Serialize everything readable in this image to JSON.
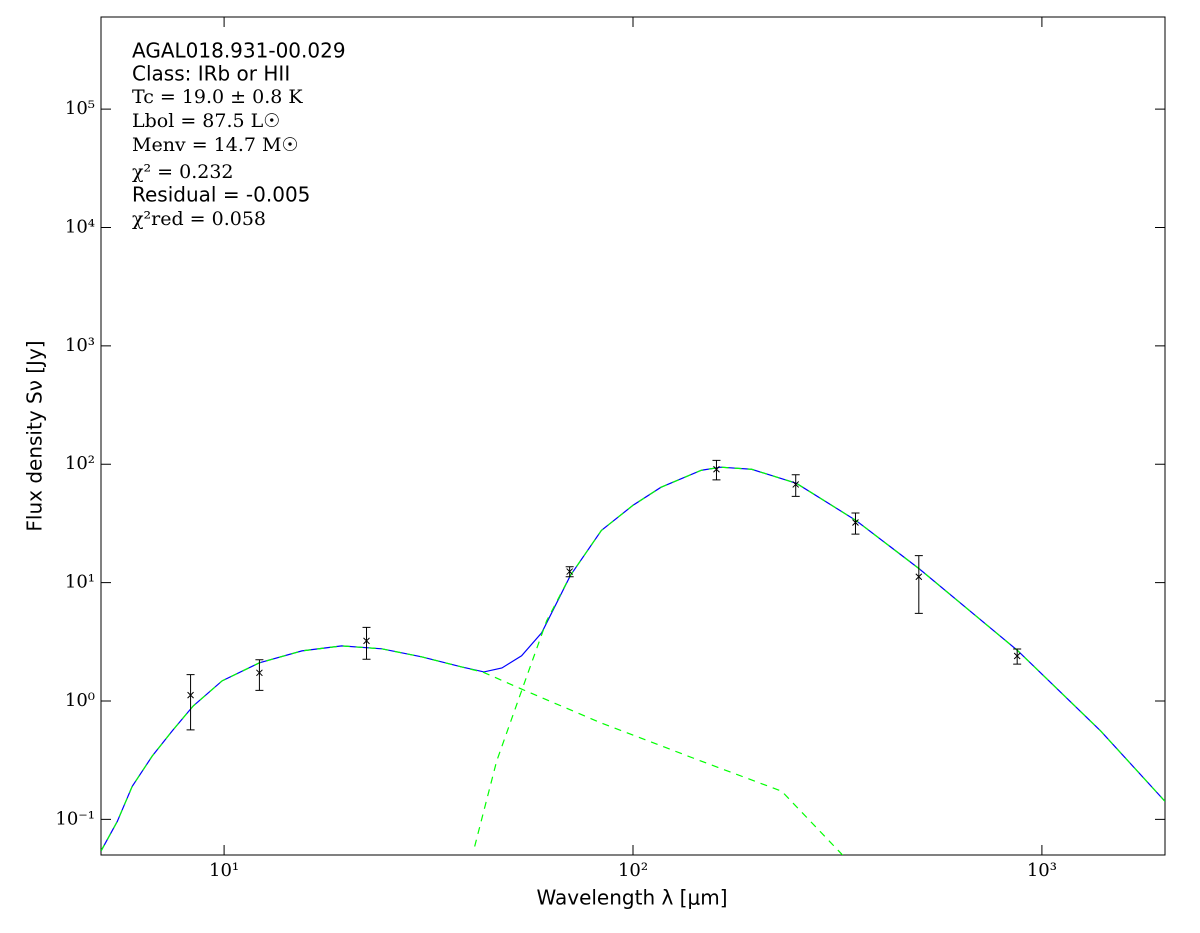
{
  "chart_data": {
    "type": "line",
    "xlabel": "Wavelength λ [μm]",
    "ylabel": "Flux density Sν [Jy]",
    "xscale": "log",
    "yscale": "log",
    "xlim": [
      5,
      2000
    ],
    "ylim": [
      0.05,
      600000
    ],
    "xticks": [
      {
        "value": 10,
        "label": "10¹"
      },
      {
        "value": 100,
        "label": "10²"
      },
      {
        "value": 1000,
        "label": "10³"
      }
    ],
    "yticks": [
      {
        "value": 0.1,
        "label": "10⁻¹"
      },
      {
        "value": 1,
        "label": "10⁰"
      },
      {
        "value": 10,
        "label": "10¹"
      },
      {
        "value": 100,
        "label": "10²"
      },
      {
        "value": 1000,
        "label": "10³"
      },
      {
        "value": 10000,
        "label": "10⁴"
      },
      {
        "value": 100000,
        "label": "10⁵"
      }
    ],
    "annotations": [
      "AGAL018.931-00.029",
      "Class: IRb or HII",
      "Tc = 19.0 ± 0.8 K",
      "Lbol = 87.5 L☉",
      "Menv = 14.7 M☉",
      "χ² = 0.232",
      "Residual = -0.005",
      "χ²red = 0.058"
    ],
    "series": [
      {
        "style": "line",
        "color": "#0000ff",
        "x": [
          5,
          5.48,
          5.96,
          6.67,
          7.46,
          8.4,
          9.89,
          12.2,
          15.5,
          19.4,
          24.3,
          30.4,
          38.1,
          43.2,
          47.8,
          53.4,
          59.8,
          70.3,
          83.7,
          100,
          117,
          147,
          164,
          195,
          251,
          351,
          501,
          874,
          1393,
          2000
        ],
        "values": [
          0.054,
          0.096,
          0.19,
          0.342,
          0.557,
          0.907,
          1.48,
          2.1,
          2.65,
          2.92,
          2.76,
          2.36,
          1.94,
          1.76,
          1.9,
          2.41,
          3.77,
          11.5,
          27.6,
          45,
          63.8,
          89,
          94.4,
          90.7,
          69,
          33.5,
          13.1,
          2.65,
          0.557,
          0.142
        ]
      },
      {
        "style": "dashed",
        "color": "#00ff00",
        "x": [
          41,
          46.4,
          53.4,
          61.5,
          70.3,
          83.7,
          100,
          117,
          147,
          164,
          195,
          251,
          351,
          501,
          874,
          1393,
          2000
        ],
        "values": [
          0.059,
          0.31,
          1.22,
          4.76,
          11.5,
          27.6,
          45,
          63.8,
          89,
          94.4,
          90.7,
          69,
          33.5,
          13.1,
          2.65,
          0.557,
          0.142
        ]
      },
      {
        "style": "dashed",
        "color": "#00ff00",
        "x": [
          5,
          5.48,
          5.96,
          6.67,
          7.46,
          8.4,
          9.89,
          12.2,
          15.5,
          19.4,
          24.3,
          30.4,
          38.1,
          43.2,
          53.4,
          83.7,
          147,
          231,
          328
        ],
        "values": [
          0.054,
          0.096,
          0.19,
          0.342,
          0.557,
          0.907,
          1.48,
          2.1,
          2.65,
          2.92,
          2.76,
          2.36,
          1.94,
          1.74,
          1.26,
          0.651,
          0.31,
          0.173,
          0.0486
        ]
      },
      {
        "style": "errorbar",
        "color": "#000000",
        "x": [
          8.28,
          12.2,
          22.3,
          70,
          160,
          250,
          350,
          500,
          870
        ],
        "values": [
          1.12,
          1.73,
          3.22,
          12.4,
          90.7,
          67.5,
          32.2,
          11.2,
          2.4
        ],
        "errors": [
          0.55,
          0.5,
          0.97,
          1.2,
          17,
          14,
          6.5,
          5.7,
          0.35
        ]
      }
    ]
  }
}
